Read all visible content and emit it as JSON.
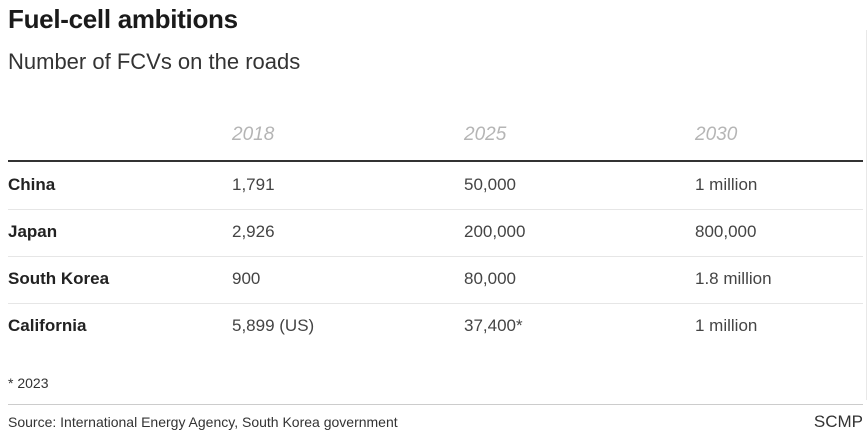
{
  "chart_data": {
    "type": "table",
    "title": "Fuel-cell ambitions",
    "subtitle": "Number of FCVs on the roads",
    "columns": [
      "2018",
      "2025",
      "2030"
    ],
    "rows": [
      {
        "label": "China",
        "values": [
          "1,791",
          "50,000",
          "1 million"
        ]
      },
      {
        "label": "Japan",
        "values": [
          "2,926",
          "200,000",
          "800,000"
        ]
      },
      {
        "label": "South Korea",
        "values": [
          "900",
          "80,000",
          "1.8 million"
        ]
      },
      {
        "label": "California",
        "values": [
          "5,899 (US)",
          "37,400*",
          "1 million"
        ]
      }
    ],
    "note": "* 2023",
    "source": "Source: International Energy Agency, South Korea government",
    "brand": "SCMP"
  }
}
